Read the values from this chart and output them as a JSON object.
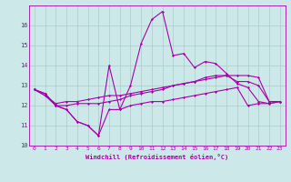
{
  "x": [
    0,
    1,
    2,
    3,
    4,
    5,
    6,
    7,
    8,
    9,
    10,
    11,
    12,
    13,
    14,
    15,
    16,
    17,
    18,
    19,
    20,
    21,
    22,
    23
  ],
  "line1": [
    12.8,
    12.6,
    12.0,
    11.8,
    11.2,
    11.0,
    10.5,
    11.8,
    11.8,
    12.0,
    12.1,
    12.2,
    12.2,
    12.3,
    12.4,
    12.5,
    12.6,
    12.7,
    12.8,
    12.9,
    12.0,
    12.1,
    12.1,
    12.2
  ],
  "line2": [
    12.8,
    12.6,
    12.0,
    11.8,
    11.2,
    11.0,
    10.5,
    14.0,
    11.8,
    13.0,
    15.1,
    16.3,
    16.7,
    14.5,
    14.6,
    13.9,
    14.2,
    14.1,
    13.6,
    13.1,
    12.9,
    12.2,
    12.1,
    12.2
  ],
  "line3": [
    12.8,
    12.5,
    12.0,
    12.0,
    12.1,
    12.1,
    12.1,
    12.2,
    12.3,
    12.5,
    12.6,
    12.7,
    12.8,
    13.0,
    13.1,
    13.2,
    13.4,
    13.5,
    13.5,
    13.2,
    13.2,
    13.0,
    12.2,
    12.2
  ],
  "line4": [
    12.8,
    12.5,
    12.1,
    12.2,
    12.2,
    12.3,
    12.4,
    12.5,
    12.5,
    12.6,
    12.7,
    12.8,
    12.9,
    13.0,
    13.1,
    13.2,
    13.3,
    13.4,
    13.5,
    13.5,
    13.5,
    13.4,
    12.2,
    12.2
  ],
  "line_color": "#aa00aa",
  "bg_color": "#cce8e8",
  "grid_color": "#aacccc",
  "xlabel": "Windchill (Refroidissement éolien,°C)",
  "xlim_min": -0.5,
  "xlim_max": 23.5,
  "ylim_min": 10,
  "ylim_max": 17,
  "yticks": [
    10,
    11,
    12,
    13,
    14,
    15,
    16
  ],
  "xticks": [
    0,
    1,
    2,
    3,
    4,
    5,
    6,
    7,
    8,
    9,
    10,
    11,
    12,
    13,
    14,
    15,
    16,
    17,
    18,
    19,
    20,
    21,
    22,
    23
  ],
  "marker": "D",
  "markersize": 1.5,
  "linewidth": 0.8,
  "tick_fontsize": 4.5,
  "xlabel_fontsize": 5.0
}
